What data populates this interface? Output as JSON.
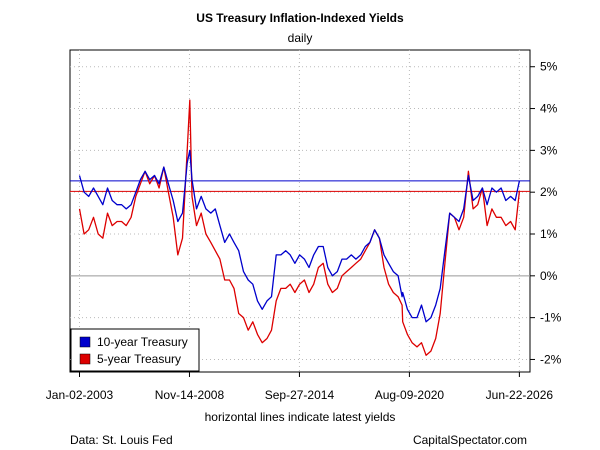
{
  "chart_data": {
    "type": "line",
    "title": "US Treasury Inflation-Indexed Yields",
    "subtitle": "daily",
    "x_note": "horizontal lines indicate latest yields",
    "source_left": "Data: St. Louis Fed",
    "source_right": "CapitalSpectator.com",
    "x_tick_labels": [
      "Jan-02-2003",
      "Nov-14-2008",
      "Sep-27-2014",
      "Aug-09-2020",
      "Jun-22-2026"
    ],
    "x_tick_dates": [
      "2003-01-02",
      "2008-11-14",
      "2014-09-27",
      "2020-08-09",
      "2026-06-22"
    ],
    "x_range": [
      "2002-07-01",
      "2027-01-15"
    ],
    "y_ticks": [
      -2,
      -1,
      0,
      1,
      2,
      3,
      4,
      5
    ],
    "y_tick_labels": [
      "-2%",
      "-1%",
      "0%",
      "1%",
      "2%",
      "3%",
      "4%",
      "5%"
    ],
    "ylim": [
      -2.3,
      5.4
    ],
    "grid": true,
    "legend_position": "bottom-left",
    "colors": {
      "ten_year": "#0000cc",
      "five_year": "#dd0000",
      "grid": "#bbbbbb",
      "zero_line": "#999999"
    },
    "latest_yields": [
      {
        "series": "10-year Treasury",
        "value": 2.27,
        "color": "#0000cc"
      },
      {
        "series": "5-year Treasury",
        "value": 2.02,
        "color": "#dd0000"
      }
    ],
    "series": [
      {
        "name": "10-year Treasury",
        "color": "#0000cc",
        "x": [
          "2003-01-02",
          "2003-04-01",
          "2003-07-01",
          "2003-10-01",
          "2004-01-02",
          "2004-04-01",
          "2004-07-01",
          "2004-10-01",
          "2005-01-03",
          "2005-04-01",
          "2005-07-01",
          "2005-10-03",
          "2006-01-03",
          "2006-04-03",
          "2006-07-03",
          "2006-10-02",
          "2007-01-02",
          "2007-04-02",
          "2007-07-02",
          "2007-10-01",
          "2008-01-02",
          "2008-04-01",
          "2008-07-01",
          "2008-10-01",
          "2008-11-20",
          "2009-01-02",
          "2009-04-01",
          "2009-07-01",
          "2009-10-01",
          "2010-01-04",
          "2010-04-01",
          "2010-07-01",
          "2010-10-01",
          "2011-01-03",
          "2011-04-01",
          "2011-07-01",
          "2011-10-03",
          "2012-01-03",
          "2012-04-02",
          "2012-07-02",
          "2012-10-01",
          "2013-01-02",
          "2013-04-01",
          "2013-07-01",
          "2013-10-01",
          "2014-01-02",
          "2014-04-01",
          "2014-07-01",
          "2014-10-01",
          "2015-01-02",
          "2015-04-01",
          "2015-07-01",
          "2015-10-01",
          "2016-01-04",
          "2016-04-01",
          "2016-07-01",
          "2016-10-03",
          "2017-01-03",
          "2017-04-03",
          "2017-07-03",
          "2017-10-02",
          "2018-01-02",
          "2018-04-02",
          "2018-07-02",
          "2018-10-01",
          "2019-01-02",
          "2019-04-01",
          "2019-07-01",
          "2019-10-01",
          "2020-01-02",
          "2020-03-19",
          "2020-04-01",
          "2020-07-01",
          "2020-10-01",
          "2021-01-04",
          "2021-04-01",
          "2021-07-01",
          "2021-10-01",
          "2022-01-03",
          "2022-04-01",
          "2022-07-01",
          "2022-10-03",
          "2023-01-03",
          "2023-04-03",
          "2023-07-03",
          "2023-10-02",
          "2024-01-02",
          "2024-04-01",
          "2024-07-01",
          "2024-10-01",
          "2025-01-02",
          "2025-04-01",
          "2025-07-01",
          "2025-10-01",
          "2026-01-02",
          "2026-04-01",
          "2026-06-22"
        ],
        "values": [
          2.4,
          2.0,
          1.9,
          2.1,
          1.9,
          1.7,
          2.1,
          1.8,
          1.7,
          1.7,
          1.6,
          1.7,
          2.0,
          2.3,
          2.5,
          2.3,
          2.4,
          2.2,
          2.6,
          2.2,
          1.8,
          1.3,
          1.5,
          2.7,
          3.0,
          2.3,
          1.6,
          1.9,
          1.6,
          1.5,
          1.6,
          1.2,
          0.8,
          1.0,
          0.8,
          0.6,
          0.1,
          -0.1,
          -0.2,
          -0.6,
          -0.8,
          -0.6,
          -0.5,
          0.5,
          0.5,
          0.6,
          0.5,
          0.3,
          0.5,
          0.4,
          0.2,
          0.5,
          0.7,
          0.7,
          0.2,
          0.0,
          0.1,
          0.4,
          0.4,
          0.5,
          0.4,
          0.5,
          0.7,
          0.8,
          1.1,
          0.9,
          0.5,
          0.3,
          0.1,
          0.0,
          -0.5,
          -0.4,
          -0.8,
          -1.0,
          -1.0,
          -0.7,
          -1.1,
          -1.0,
          -0.7,
          -0.3,
          0.6,
          1.5,
          1.4,
          1.3,
          1.6,
          2.4,
          1.8,
          1.9,
          2.1,
          1.7,
          2.1,
          2.0,
          2.1,
          1.8,
          1.9,
          1.8,
          2.27
        ]
      },
      {
        "name": "5-year Treasury",
        "color": "#dd0000",
        "x": [
          "2003-01-02",
          "2003-04-01",
          "2003-07-01",
          "2003-10-01",
          "2004-01-02",
          "2004-04-01",
          "2004-07-01",
          "2004-10-01",
          "2005-01-03",
          "2005-04-01",
          "2005-07-01",
          "2005-10-03",
          "2006-01-03",
          "2006-04-03",
          "2006-07-03",
          "2006-10-02",
          "2007-01-02",
          "2007-04-02",
          "2007-07-02",
          "2007-10-01",
          "2008-01-02",
          "2008-04-01",
          "2008-07-01",
          "2008-10-01",
          "2008-11-20",
          "2009-01-02",
          "2009-04-01",
          "2009-07-01",
          "2009-10-01",
          "2010-01-04",
          "2010-04-01",
          "2010-07-01",
          "2010-10-01",
          "2011-01-03",
          "2011-04-01",
          "2011-07-01",
          "2011-10-03",
          "2012-01-03",
          "2012-04-02",
          "2012-07-02",
          "2012-10-01",
          "2013-01-02",
          "2013-04-01",
          "2013-07-01",
          "2013-10-01",
          "2014-01-02",
          "2014-04-01",
          "2014-07-01",
          "2014-10-01",
          "2015-01-02",
          "2015-04-01",
          "2015-07-01",
          "2015-10-01",
          "2016-01-04",
          "2016-04-01",
          "2016-07-01",
          "2016-10-03",
          "2017-01-03",
          "2017-04-03",
          "2017-07-03",
          "2017-10-02",
          "2018-01-02",
          "2018-04-02",
          "2018-07-02",
          "2018-10-01",
          "2019-01-02",
          "2019-04-01",
          "2019-07-01",
          "2019-10-01",
          "2020-01-02",
          "2020-03-19",
          "2020-04-01",
          "2020-07-01",
          "2020-10-01",
          "2021-01-04",
          "2021-04-01",
          "2021-07-01",
          "2021-10-01",
          "2022-01-03",
          "2022-04-01",
          "2022-07-01",
          "2022-10-03",
          "2023-01-03",
          "2023-04-03",
          "2023-07-03",
          "2023-10-02",
          "2024-01-02",
          "2024-04-01",
          "2024-07-01",
          "2024-10-01",
          "2025-01-02",
          "2025-04-01",
          "2025-07-01",
          "2025-10-01",
          "2026-01-02",
          "2026-04-01",
          "2026-06-22"
        ],
        "values": [
          1.6,
          1.0,
          1.1,
          1.4,
          1.0,
          0.9,
          1.5,
          1.2,
          1.3,
          1.3,
          1.2,
          1.4,
          1.9,
          2.2,
          2.5,
          2.2,
          2.4,
          2.1,
          2.6,
          2.0,
          1.4,
          0.5,
          0.9,
          3.0,
          4.2,
          1.9,
          1.2,
          1.5,
          1.0,
          0.8,
          0.6,
          0.4,
          -0.1,
          -0.1,
          -0.3,
          -0.9,
          -1.0,
          -1.3,
          -1.1,
          -1.4,
          -1.6,
          -1.5,
          -1.3,
          -0.6,
          -0.3,
          -0.3,
          -0.2,
          -0.4,
          -0.2,
          -0.1,
          -0.4,
          -0.2,
          0.2,
          0.3,
          -0.2,
          -0.4,
          -0.3,
          0.0,
          0.1,
          0.2,
          0.3,
          0.4,
          0.6,
          0.8,
          1.1,
          0.9,
          0.2,
          -0.2,
          -0.4,
          -0.5,
          -0.7,
          -1.1,
          -1.4,
          -1.6,
          -1.7,
          -1.6,
          -1.9,
          -1.8,
          -1.5,
          -0.9,
          0.3,
          1.5,
          1.4,
          1.1,
          1.4,
          2.5,
          1.6,
          1.7,
          2.1,
          1.2,
          1.6,
          1.4,
          1.4,
          1.2,
          1.3,
          1.1,
          2.02
        ]
      }
    ]
  }
}
